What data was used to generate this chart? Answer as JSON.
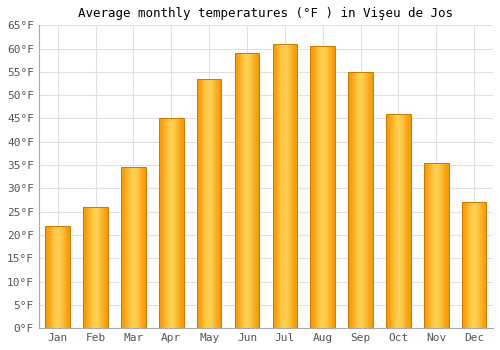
{
  "title": "Average monthly temperatures (°F ) in Vişeu de Jos",
  "months": [
    "Jan",
    "Feb",
    "Mar",
    "Apr",
    "May",
    "Jun",
    "Jul",
    "Aug",
    "Sep",
    "Oct",
    "Nov",
    "Dec"
  ],
  "values": [
    22,
    26,
    34.5,
    45,
    53.5,
    59,
    61,
    60.5,
    55,
    46,
    35.5,
    27
  ],
  "ylim": [
    0,
    65
  ],
  "yticks": [
    0,
    5,
    10,
    15,
    20,
    25,
    30,
    35,
    40,
    45,
    50,
    55,
    60,
    65
  ],
  "ytick_labels": [
    "0°F",
    "5°F",
    "10°F",
    "15°F",
    "20°F",
    "25°F",
    "30°F",
    "35°F",
    "40°F",
    "45°F",
    "50°F",
    "55°F",
    "60°F",
    "65°F"
  ],
  "bar_edge_color": "#CC7700",
  "bar_center_color": "#FFD050",
  "bar_side_color": "#F59B0A",
  "background_color": "#ffffff",
  "grid_color": "#e0e0e0",
  "title_fontsize": 9,
  "tick_fontsize": 8,
  "bar_width": 0.65,
  "n_gradient_slices": 60
}
